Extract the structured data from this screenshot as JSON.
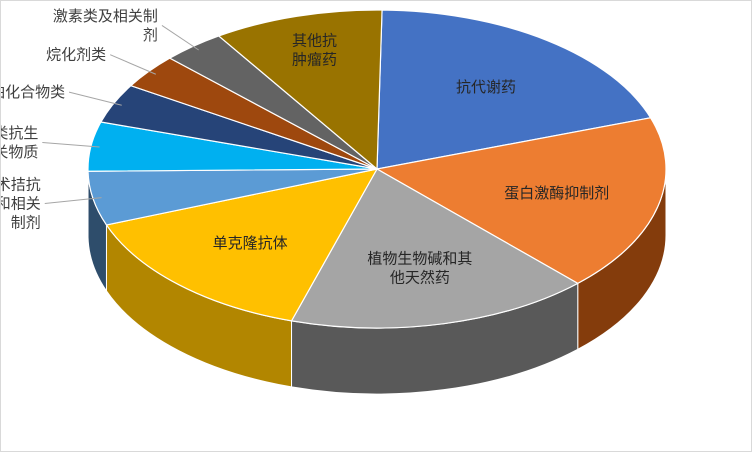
{
  "chart_data": {
    "type": "pie",
    "style": "3d",
    "title": "",
    "legend": "none",
    "slices": [
      {
        "label": "抗代谢药",
        "value": 19.5,
        "color": "#4472C4",
        "side": "#203864",
        "label_lines": [
          "抗代谢药"
        ],
        "placement": "inside"
      },
      {
        "label": "蛋白激酶抑制剂",
        "value": 18.0,
        "color": "#ED7D31",
        "side": "#843C0C",
        "label_lines": [
          "蛋白激酶抑制剂"
        ],
        "placement": "inside"
      },
      {
        "label": "植物生物碱和其他天然药",
        "value": 17.0,
        "color": "#A5A5A5",
        "side": "#595959",
        "label_lines": [
          "植物生物碱和其",
          "他天然药"
        ],
        "placement": "inside"
      },
      {
        "label": "单克隆抗体",
        "value": 14.5,
        "color": "#FFC000",
        "side": "#B28600",
        "label_lines": [
          "单克隆抗体"
        ],
        "placement": "inside"
      },
      {
        "label": "技术拮抗剂和相关制剂",
        "value": 5.5,
        "color": "#5B9BD5",
        "side": "#2E4D6B",
        "label_lines": [
          "技术拮抗",
          "剂和相关",
          "制剂"
        ],
        "placement": "outside"
      },
      {
        "label": "细胞霉素类抗生素和相关物质",
        "value": 5.0,
        "color": "#00B0F0",
        "side": "#005878",
        "label_lines": [
          "细胞霉素类抗生",
          "素和相关物质"
        ],
        "placement": "outside"
      },
      {
        "label": "铂化合物类",
        "value": 4.0,
        "color": "#264478",
        "side": "#13223C",
        "label_lines": [
          "铂化合物类"
        ],
        "placement": "outside"
      },
      {
        "label": "烷化剂类",
        "value": 3.5,
        "color": "#9E480E",
        "side": "#4F2407",
        "label_lines": [
          "烷化剂类"
        ],
        "placement": "outside"
      },
      {
        "label": "激素类及相关制剂",
        "value": 3.5,
        "color": "#636363",
        "side": "#323232",
        "label_lines": [
          "激素类及相关制",
          "剂"
        ],
        "placement": "outside"
      },
      {
        "label": "其他抗肿瘤药",
        "value": 9.5,
        "color": "#997300",
        "side": "#4C3A00",
        "label_lines": [
          "其他抗",
          "肿瘤药"
        ],
        "placement": "inside"
      }
    ]
  }
}
